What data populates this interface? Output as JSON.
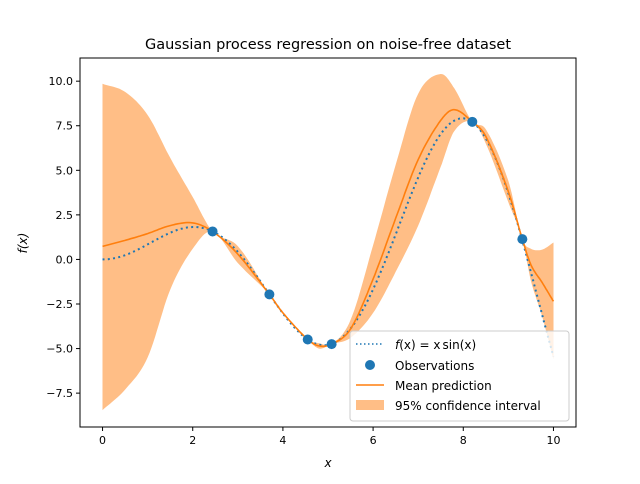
{
  "chart_data": {
    "type": "line",
    "title": "Gaussian process regression on noise-free dataset",
    "xlabel": "x",
    "ylabel": "f(x)",
    "xlim": [
      -0.5,
      10.5
    ],
    "ylim": [
      -9.4,
      11.3
    ],
    "xticks": [
      0,
      2,
      4,
      6,
      8,
      10
    ],
    "xtick_labels": [
      "0",
      "2",
      "4",
      "6",
      "8",
      "10"
    ],
    "yticks": [
      -7.5,
      -5.0,
      -2.5,
      0.0,
      2.5,
      5.0,
      7.5,
      10.0
    ],
    "ytick_labels": [
      "−7.5",
      "−5.0",
      "−2.5",
      "0.0",
      "2.5",
      "5.0",
      "7.5",
      "10.0"
    ],
    "grid": false,
    "legend_placement": "lower-right",
    "true_function": {
      "name": "f(x) = x sin(x)",
      "label_parts": [
        "f",
        "(x) = x",
        "sin",
        "(x)"
      ],
      "color": "#1f77b4",
      "style": "dotted"
    },
    "observations": {
      "name": "Observations",
      "color": "#1f77b4",
      "x": [
        2.44,
        3.7,
        4.55,
        5.08,
        8.2,
        9.31
      ],
      "y": [
        1.57,
        -1.96,
        -4.49,
        -4.75,
        7.72,
        1.14
      ]
    },
    "mean_prediction": {
      "name": "Mean prediction",
      "color": "#ff7f0e",
      "x": [
        0,
        0.5,
        1,
        1.5,
        2,
        2.44,
        3,
        3.7,
        4,
        4.55,
        4.8,
        5.08,
        5.5,
        6,
        6.5,
        7,
        7.5,
        7.8,
        8.2,
        8.5,
        9,
        9.31,
        9.5,
        9.75,
        10
      ],
      "y": [
        0.73,
        1.07,
        1.45,
        1.9,
        2.05,
        1.57,
        0.3,
        -1.96,
        -3.0,
        -4.49,
        -4.85,
        -4.75,
        -3.9,
        -1.1,
        2.3,
        5.6,
        7.8,
        8.4,
        7.72,
        6.9,
        3.8,
        1.14,
        -0.3,
        -1.3,
        -2.35
      ]
    },
    "confidence_interval": {
      "name": "95% confidence interval",
      "color": "#ffbe86",
      "x": [
        0,
        0.5,
        1,
        1.5,
        2,
        2.44,
        3,
        3.7,
        4,
        4.55,
        4.8,
        5.08,
        5.5,
        6,
        6.5,
        7,
        7.5,
        7.8,
        8.2,
        8.5,
        9,
        9.31,
        9.5,
        9.75,
        10
      ],
      "upper": [
        9.85,
        9.4,
        8.1,
        5.7,
        3.5,
        1.57,
        0.75,
        -1.96,
        -2.95,
        -4.49,
        -4.7,
        -4.75,
        -3.4,
        0.8,
        5.3,
        9.3,
        10.4,
        9.6,
        7.72,
        7.3,
        4.4,
        1.14,
        0.6,
        0.55,
        0.95
      ],
      "lower": [
        -8.45,
        -7.3,
        -5.5,
        -1.7,
        0.6,
        1.57,
        -0.2,
        -1.96,
        -3.05,
        -4.49,
        -5.0,
        -4.75,
        -4.4,
        -3.0,
        -0.7,
        1.9,
        5.2,
        7.2,
        7.72,
        6.5,
        3.2,
        1.14,
        -1.2,
        -3.2,
        -5.6
      ]
    }
  }
}
